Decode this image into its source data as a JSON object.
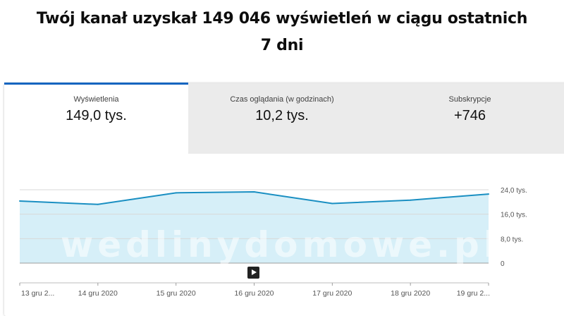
{
  "headline": {
    "line1": "Twój kanał uzyskał 149 046 wyświetleń w ciągu ostatnich",
    "line2": "7 dni"
  },
  "tabs": [
    {
      "label": "Wyświetlenia",
      "value": "149,0 tys.",
      "active": true
    },
    {
      "label": "Czas oglądania (w godzinach)",
      "value": "10,2 tys.",
      "active": false
    },
    {
      "label": "Subskrypcje",
      "value": "+746",
      "active": false
    }
  ],
  "watermark": "wedlinydomowe.pl",
  "colors": {
    "line": "#1a8fc2",
    "area": "#d6eff8",
    "tab_active_border": "#1565c0"
  },
  "play_icon": "play-icon",
  "chart_data": {
    "type": "area",
    "categories": [
      "13 gru 2...",
      "14 gru 2020",
      "15 gru 2020",
      "16 gru 2020",
      "17 gru 2020",
      "18 gru 2020",
      "19 gru 2..."
    ],
    "values": [
      20.3,
      19.2,
      23.0,
      23.3,
      19.5,
      20.6,
      22.6
    ],
    "ylim": [
      0,
      24
    ],
    "yticks": [
      {
        "value": 24,
        "label": "24,0 tys."
      },
      {
        "value": 16,
        "label": "16,0 tys."
      },
      {
        "value": 8,
        "label": "8,0 tys."
      },
      {
        "value": 0,
        "label": "0"
      }
    ],
    "grid": true
  }
}
